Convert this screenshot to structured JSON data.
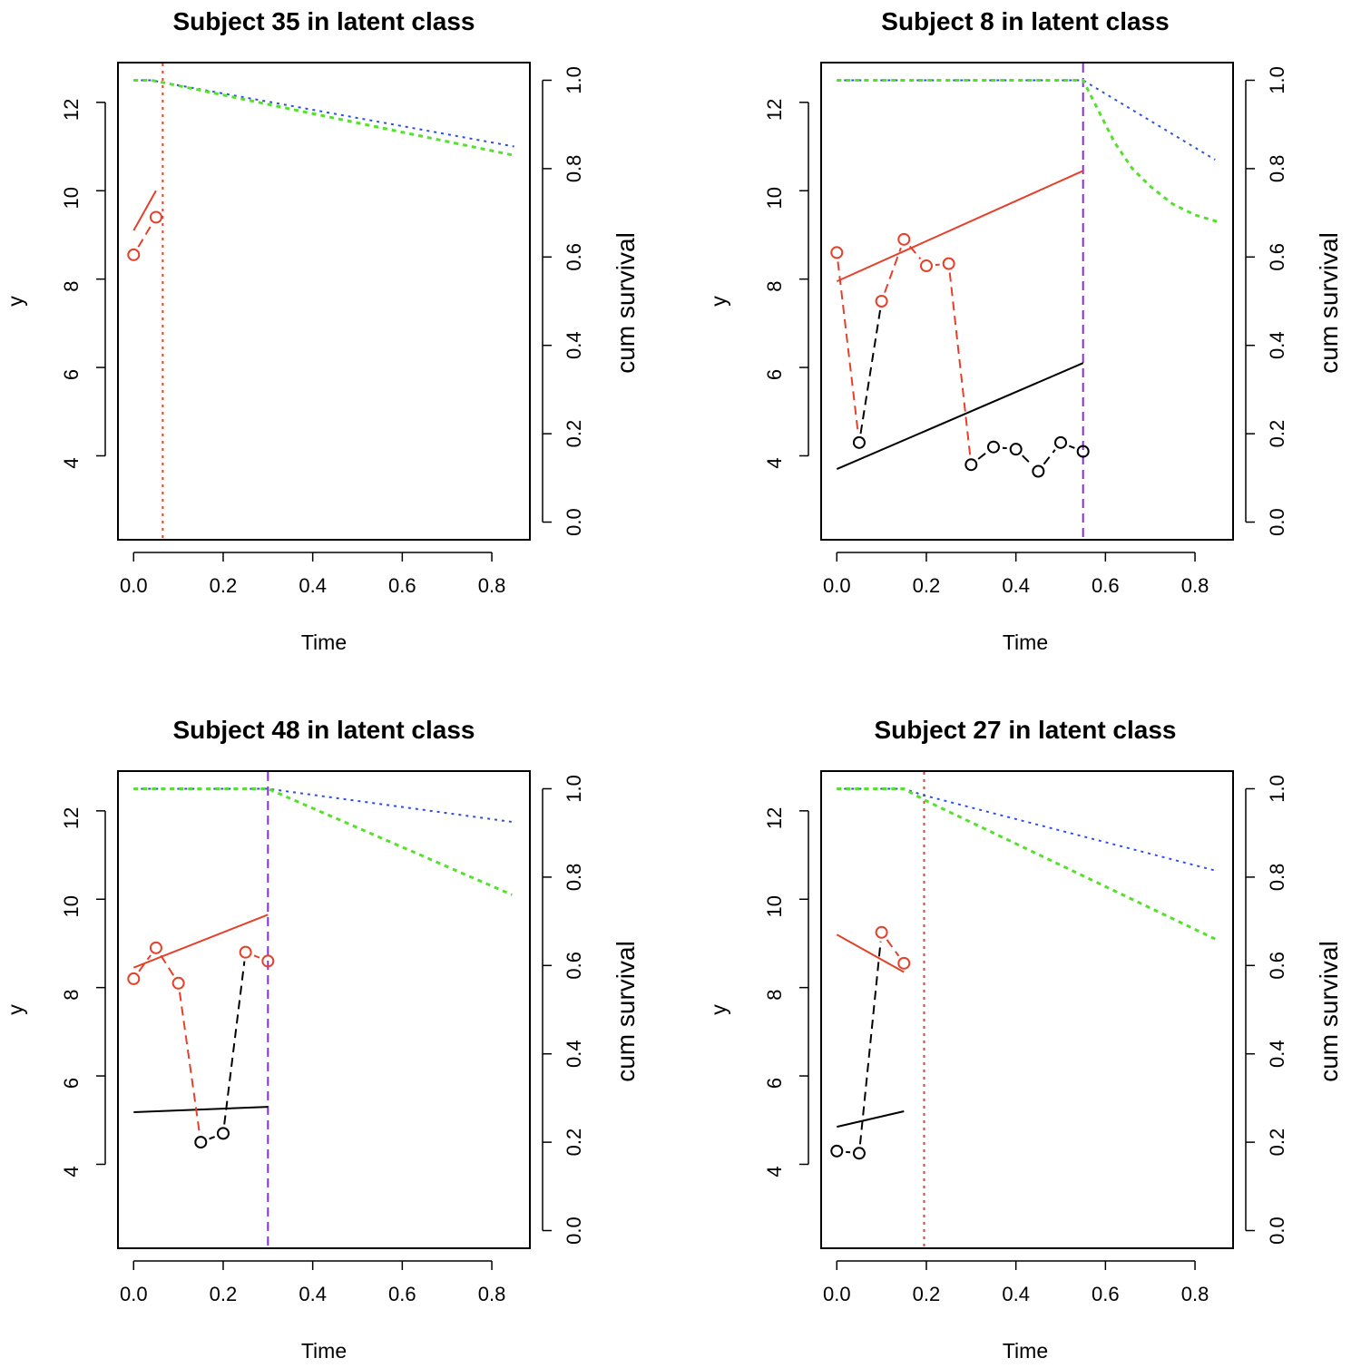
{
  "colors": {
    "class1": "#e5402a",
    "class2": "#000000",
    "surv1": "#2d4fe0",
    "surv2": "#55e02d",
    "event_dotted": "#e5402a",
    "event_dashed": "#8a2be2"
  },
  "chart_data": [
    {
      "type": "line",
      "title": "Subject 35 in latent class",
      "xlabel": "Time",
      "ylabel": "y",
      "y2label": "cum survival",
      "xlim": [
        -0.035,
        0.885
      ],
      "ylim": [
        2.1,
        12.9
      ],
      "y2lim": [
        -0.04,
        1.04
      ],
      "xticks": [
        0.0,
        0.2,
        0.4,
        0.6,
        0.8
      ],
      "xtick_labels": [
        "0.0",
        "0.2",
        "0.4",
        "0.6",
        "0.8"
      ],
      "yticks": [
        4,
        6,
        8,
        10,
        12
      ],
      "ytick_labels": [
        "4",
        "6",
        "8",
        "10",
        "12"
      ],
      "y2ticks": [
        0.0,
        0.2,
        0.4,
        0.6,
        0.8,
        1.0
      ],
      "y2tick_labels": [
        "0.0",
        "0.2",
        "0.4",
        "0.6",
        "0.8",
        "1.0"
      ],
      "event_time": 0.065,
      "event_style": "dotted",
      "observations": [
        {
          "x": 0.0,
          "y": 8.55,
          "class": 1
        },
        {
          "x": 0.05,
          "y": 9.4,
          "class": 1
        }
      ],
      "fitted": [
        {
          "class": 1,
          "x": [
            0.0,
            0.05
          ],
          "y": [
            9.1,
            10.0
          ]
        }
      ],
      "survival": [
        {
          "name": "class 1",
          "x": [
            0.0,
            0.04,
            0.065,
            0.85
          ],
          "y": [
            1.0,
            1.0,
            0.995,
            0.85
          ]
        },
        {
          "name": "class 2",
          "x": [
            0.0,
            0.04,
            0.065,
            0.85
          ],
          "y": [
            1.0,
            1.0,
            0.995,
            0.83
          ]
        }
      ]
    },
    {
      "type": "line",
      "title": "Subject 8 in latent class",
      "xlabel": "Time",
      "ylabel": "y",
      "y2label": "cum survival",
      "xlim": [
        -0.035,
        0.885
      ],
      "ylim": [
        2.1,
        12.9
      ],
      "y2lim": [
        -0.04,
        1.04
      ],
      "xticks": [
        0.0,
        0.2,
        0.4,
        0.6,
        0.8
      ],
      "xtick_labels": [
        "0.0",
        "0.2",
        "0.4",
        "0.6",
        "0.8"
      ],
      "yticks": [
        4,
        6,
        8,
        10,
        12
      ],
      "ytick_labels": [
        "4",
        "6",
        "8",
        "10",
        "12"
      ],
      "y2ticks": [
        0.0,
        0.2,
        0.4,
        0.6,
        0.8,
        1.0
      ],
      "y2tick_labels": [
        "0.0",
        "0.2",
        "0.4",
        "0.6",
        "0.8",
        "1.0"
      ],
      "event_time": 0.55,
      "event_style": "dashed",
      "observations": [
        {
          "x": 0.0,
          "y": 8.6,
          "class": 1
        },
        {
          "x": 0.05,
          "y": 4.3,
          "class": 2
        },
        {
          "x": 0.1,
          "y": 7.5,
          "class": 1
        },
        {
          "x": 0.15,
          "y": 8.9,
          "class": 1
        },
        {
          "x": 0.2,
          "y": 8.3,
          "class": 1
        },
        {
          "x": 0.25,
          "y": 8.35,
          "class": 1
        },
        {
          "x": 0.3,
          "y": 3.8,
          "class": 2
        },
        {
          "x": 0.35,
          "y": 4.2,
          "class": 2
        },
        {
          "x": 0.4,
          "y": 4.15,
          "class": 2
        },
        {
          "x": 0.45,
          "y": 3.65,
          "class": 2
        },
        {
          "x": 0.5,
          "y": 4.3,
          "class": 2
        },
        {
          "x": 0.55,
          "y": 4.1,
          "class": 2
        }
      ],
      "fitted": [
        {
          "class": 1,
          "x": [
            0.0,
            0.55
          ],
          "y": [
            7.95,
            10.45
          ]
        },
        {
          "class": 2,
          "x": [
            0.0,
            0.55
          ],
          "y": [
            3.7,
            6.1
          ]
        }
      ],
      "survival": [
        {
          "name": "class 1",
          "x": [
            0.0,
            0.55,
            0.845
          ],
          "y": [
            1.0,
            1.0,
            0.82
          ]
        },
        {
          "name": "class 2",
          "x": [
            0.0,
            0.55,
            0.58,
            0.62,
            0.66,
            0.7,
            0.75,
            0.8,
            0.85
          ],
          "y": [
            1.0,
            1.0,
            0.94,
            0.86,
            0.8,
            0.76,
            0.72,
            0.695,
            0.68
          ]
        }
      ]
    },
    {
      "type": "line",
      "title": "Subject 48 in latent class",
      "xlabel": "Time",
      "ylabel": "y",
      "y2label": "cum survival",
      "xlim": [
        -0.035,
        0.885
      ],
      "ylim": [
        2.1,
        12.9
      ],
      "y2lim": [
        -0.04,
        1.04
      ],
      "xticks": [
        0.0,
        0.2,
        0.4,
        0.6,
        0.8
      ],
      "xtick_labels": [
        "0.0",
        "0.2",
        "0.4",
        "0.6",
        "0.8"
      ],
      "yticks": [
        4,
        6,
        8,
        10,
        12
      ],
      "ytick_labels": [
        "4",
        "6",
        "8",
        "10",
        "12"
      ],
      "y2ticks": [
        0.0,
        0.2,
        0.4,
        0.6,
        0.8,
        1.0
      ],
      "y2tick_labels": [
        "0.0",
        "0.2",
        "0.4",
        "0.6",
        "0.8",
        "1.0"
      ],
      "event_time": 0.3,
      "event_style": "dashed",
      "observations": [
        {
          "x": 0.0,
          "y": 8.2,
          "class": 1
        },
        {
          "x": 0.05,
          "y": 8.9,
          "class": 1
        },
        {
          "x": 0.1,
          "y": 8.1,
          "class": 1
        },
        {
          "x": 0.15,
          "y": 4.5,
          "class": 2
        },
        {
          "x": 0.2,
          "y": 4.7,
          "class": 2
        },
        {
          "x": 0.25,
          "y": 8.8,
          "class": 1
        },
        {
          "x": 0.3,
          "y": 8.6,
          "class": 1
        }
      ],
      "fitted": [
        {
          "class": 1,
          "x": [
            0.0,
            0.3
          ],
          "y": [
            8.45,
            9.65
          ]
        },
        {
          "class": 2,
          "x": [
            0.0,
            0.3
          ],
          "y": [
            5.18,
            5.3
          ]
        }
      ],
      "survival": [
        {
          "name": "class 1",
          "x": [
            0.0,
            0.3,
            0.845
          ],
          "y": [
            1.0,
            1.0,
            0.925
          ]
        },
        {
          "name": "class 2",
          "x": [
            0.0,
            0.3,
            0.845
          ],
          "y": [
            1.0,
            1.0,
            0.76
          ]
        }
      ]
    },
    {
      "type": "line",
      "title": "Subject 27 in latent class",
      "xlabel": "Time",
      "ylabel": "y",
      "y2label": "cum survival",
      "xlim": [
        -0.035,
        0.885
      ],
      "ylim": [
        2.1,
        12.9
      ],
      "y2lim": [
        -0.04,
        1.04
      ],
      "xticks": [
        0.0,
        0.2,
        0.4,
        0.6,
        0.8
      ],
      "xtick_labels": [
        "0.0",
        "0.2",
        "0.4",
        "0.6",
        "0.8"
      ],
      "yticks": [
        4,
        6,
        8,
        10,
        12
      ],
      "ytick_labels": [
        "4",
        "6",
        "8",
        "10",
        "12"
      ],
      "y2ticks": [
        0.0,
        0.2,
        0.4,
        0.6,
        0.8,
        1.0
      ],
      "y2tick_labels": [
        "0.0",
        "0.2",
        "0.4",
        "0.6",
        "0.8",
        "1.0"
      ],
      "event_time": 0.195,
      "event_style": "dotted",
      "observations": [
        {
          "x": 0.0,
          "y": 4.3,
          "class": 2
        },
        {
          "x": 0.05,
          "y": 4.25,
          "class": 2
        },
        {
          "x": 0.1,
          "y": 9.25,
          "class": 1
        },
        {
          "x": 0.15,
          "y": 8.55,
          "class": 1
        }
      ],
      "fitted": [
        {
          "class": 1,
          "x": [
            0.0,
            0.15
          ],
          "y": [
            9.2,
            8.35
          ]
        },
        {
          "class": 2,
          "x": [
            0.0,
            0.15
          ],
          "y": [
            4.85,
            5.2
          ]
        }
      ],
      "survival": [
        {
          "name": "class 1",
          "x": [
            0.0,
            0.15,
            0.195,
            0.845
          ],
          "y": [
            1.0,
            1.0,
            0.985,
            0.815
          ]
        },
        {
          "name": "class 2",
          "x": [
            0.0,
            0.15,
            0.195,
            0.845
          ],
          "y": [
            1.0,
            1.0,
            0.975,
            0.66
          ]
        }
      ]
    }
  ]
}
